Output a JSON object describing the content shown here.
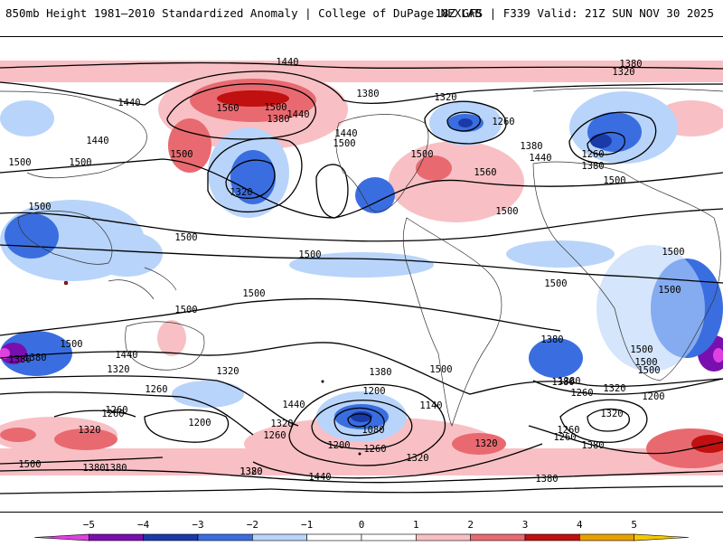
{
  "header": {
    "title_left": "850mb Height 1981–2010 Standardized Anomaly | College of DuPage NEXLAB",
    "title_right": "18Z GFS | F339 Valid: 21Z SUN NOV 30 2025"
  },
  "contour_labels": [
    {
      "text": "1440"
    },
    {
      "text": "1380"
    },
    {
      "text": "1320"
    },
    {
      "text": "1440"
    },
    {
      "text": "1560"
    },
    {
      "text": "1500"
    },
    {
      "text": "1380"
    },
    {
      "text": "1440"
    },
    {
      "text": "1380"
    },
    {
      "text": "1320"
    },
    {
      "text": "1260"
    },
    {
      "text": "1380"
    },
    {
      "text": "1440"
    },
    {
      "text": "1260"
    },
    {
      "text": "1380"
    },
    {
      "text": "1440"
    },
    {
      "text": "1500"
    },
    {
      "text": "1500"
    },
    {
      "text": "1320"
    },
    {
      "text": "1500"
    },
    {
      "text": "1440"
    },
    {
      "text": "1500"
    },
    {
      "text": "1560"
    },
    {
      "text": "1500"
    },
    {
      "text": "1500"
    },
    {
      "text": "1500"
    },
    {
      "text": "1500"
    },
    {
      "text": "1500"
    },
    {
      "text": "1500"
    },
    {
      "text": "1500"
    },
    {
      "text": "1500"
    },
    {
      "text": "1500"
    },
    {
      "text": "1500"
    },
    {
      "text": "1500"
    },
    {
      "text": "1500"
    },
    {
      "text": "1500"
    },
    {
      "text": "1440"
    },
    {
      "text": "1380"
    },
    {
      "text": "1320"
    },
    {
      "text": "1260"
    },
    {
      "text": "1260"
    },
    {
      "text": "1200"
    },
    {
      "text": "1320"
    },
    {
      "text": "1380"
    },
    {
      "text": "1380"
    },
    {
      "text": "1440"
    },
    {
      "text": "1380"
    },
    {
      "text": "1200"
    },
    {
      "text": "1140"
    },
    {
      "text": "1080"
    },
    {
      "text": "1260"
    },
    {
      "text": "1320"
    },
    {
      "text": "1260"
    },
    {
      "text": "1200"
    },
    {
      "text": "1260"
    },
    {
      "text": "1320"
    },
    {
      "text": "1320"
    },
    {
      "text": "1380"
    },
    {
      "text": "1380"
    },
    {
      "text": "1440"
    },
    {
      "text": "1500"
    },
    {
      "text": "1380"
    },
    {
      "text": "1260"
    },
    {
      "text": "1320"
    },
    {
      "text": "1200"
    },
    {
      "text": "1260"
    },
    {
      "text": "1320"
    },
    {
      "text": "1380"
    },
    {
      "text": "1380"
    },
    {
      "text": "1320"
    },
    {
      "text": "1260"
    },
    {
      "text": "1500"
    },
    {
      "text": "1380"
    },
    {
      "text": "1500"
    },
    {
      "text": "1500"
    },
    {
      "text": "1380"
    },
    {
      "text": "1320"
    }
  ],
  "colorbar": {
    "ticks": [
      "−5",
      "−4",
      "−3",
      "−2",
      "−1",
      "0",
      "1",
      "2",
      "3",
      "4",
      "5"
    ],
    "colors": [
      "#e040e0",
      "#7a0fb0",
      "#1a3aa8",
      "#3a6ee0",
      "#b8d4fa",
      "#ffffff",
      "#ffffff",
      "#f8c0c4",
      "#e86a70",
      "#c01010",
      "#e8a000",
      "#f5c800"
    ],
    "min": -6,
    "max": 6
  }
}
